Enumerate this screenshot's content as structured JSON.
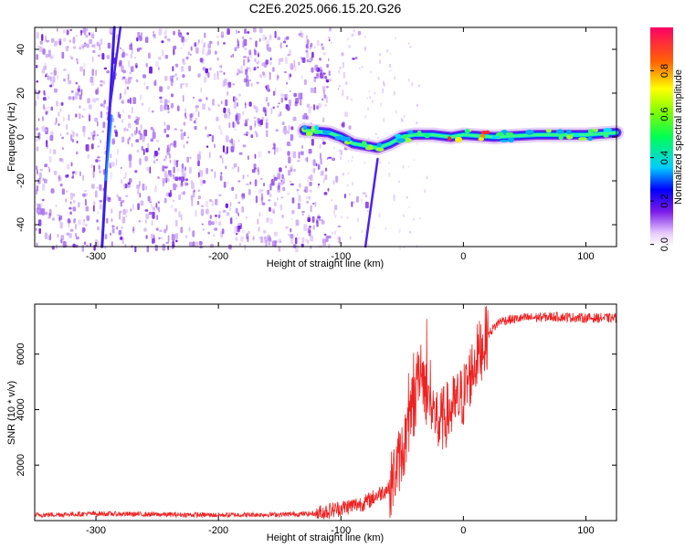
{
  "title": "C2E6.2025.066.15.20.G26",
  "chart_data": [
    {
      "type": "heatmap",
      "xlabel": "Height of straight line (km)",
      "ylabel": "Frequency (Hz)",
      "xlim": [
        -350,
        125
      ],
      "ylim": [
        -50,
        50
      ],
      "x_ticks": [
        -300,
        -200,
        -100,
        0,
        100
      ],
      "y_ticks": [
        -40,
        -20,
        0,
        20,
        40
      ],
      "colorbar": {
        "label": "Normalized spectral amplitude",
        "range": [
          0,
          1
        ],
        "ticks": [
          "0.0",
          "0.2",
          "0.4",
          "0.6",
          "0.8"
        ]
      },
      "features": {
        "noise_region_x": [
          -350,
          -110
        ],
        "signal_band": [
          {
            "x": -130,
            "y": 3
          },
          {
            "x": -110,
            "y": 2
          },
          {
            "x": -100,
            "y": 0
          },
          {
            "x": -90,
            "y": -3
          },
          {
            "x": -80,
            "y": -4
          },
          {
            "x": -70,
            "y": -5
          },
          {
            "x": -60,
            "y": -3
          },
          {
            "x": -50,
            "y": 0
          },
          {
            "x": -40,
            "y": 1
          },
          {
            "x": -25,
            "y": 1
          },
          {
            "x": -10,
            "y": 0
          },
          {
            "x": 0,
            "y": 1
          },
          {
            "x": 25,
            "y": 0
          },
          {
            "x": 60,
            "y": 1
          },
          {
            "x": 100,
            "y": 1
          },
          {
            "x": 125,
            "y": 2
          }
        ],
        "diagonal_streaks": [
          {
            "x1": -295,
            "y1": -50,
            "x2": -285,
            "y2": 50
          },
          {
            "x1": -290,
            "y1": 8,
            "x2": -280,
            "y2": 50
          },
          {
            "x1": -80,
            "y1": -50,
            "x2": -70,
            "y2": -10
          }
        ]
      }
    },
    {
      "type": "line",
      "xlabel": "Height of straight line (km)",
      "ylabel": "SNR (10 * v/v)",
      "xlim": [
        -350,
        125
      ],
      "ylim": [
        0,
        7800
      ],
      "x_ticks": [
        -300,
        -200,
        -100,
        0,
        100
      ],
      "y_ticks": [
        2000,
        4000,
        6000
      ],
      "color": "#ee2222",
      "series": [
        {
          "x": [
            -350,
            -300,
            -250,
            -200,
            -150,
            -120,
            -100,
            -80,
            -60,
            -50,
            -40,
            -35,
            -30,
            -20,
            -10,
            0,
            10,
            20,
            30,
            50,
            75,
            100,
            125
          ],
          "y": [
            200,
            250,
            220,
            200,
            220,
            250,
            450,
            650,
            1200,
            2500,
            4000,
            5800,
            4500,
            3500,
            4000,
            4500,
            5800,
            6700,
            7200,
            7300,
            7350,
            7300,
            7300
          ]
        }
      ]
    }
  ]
}
